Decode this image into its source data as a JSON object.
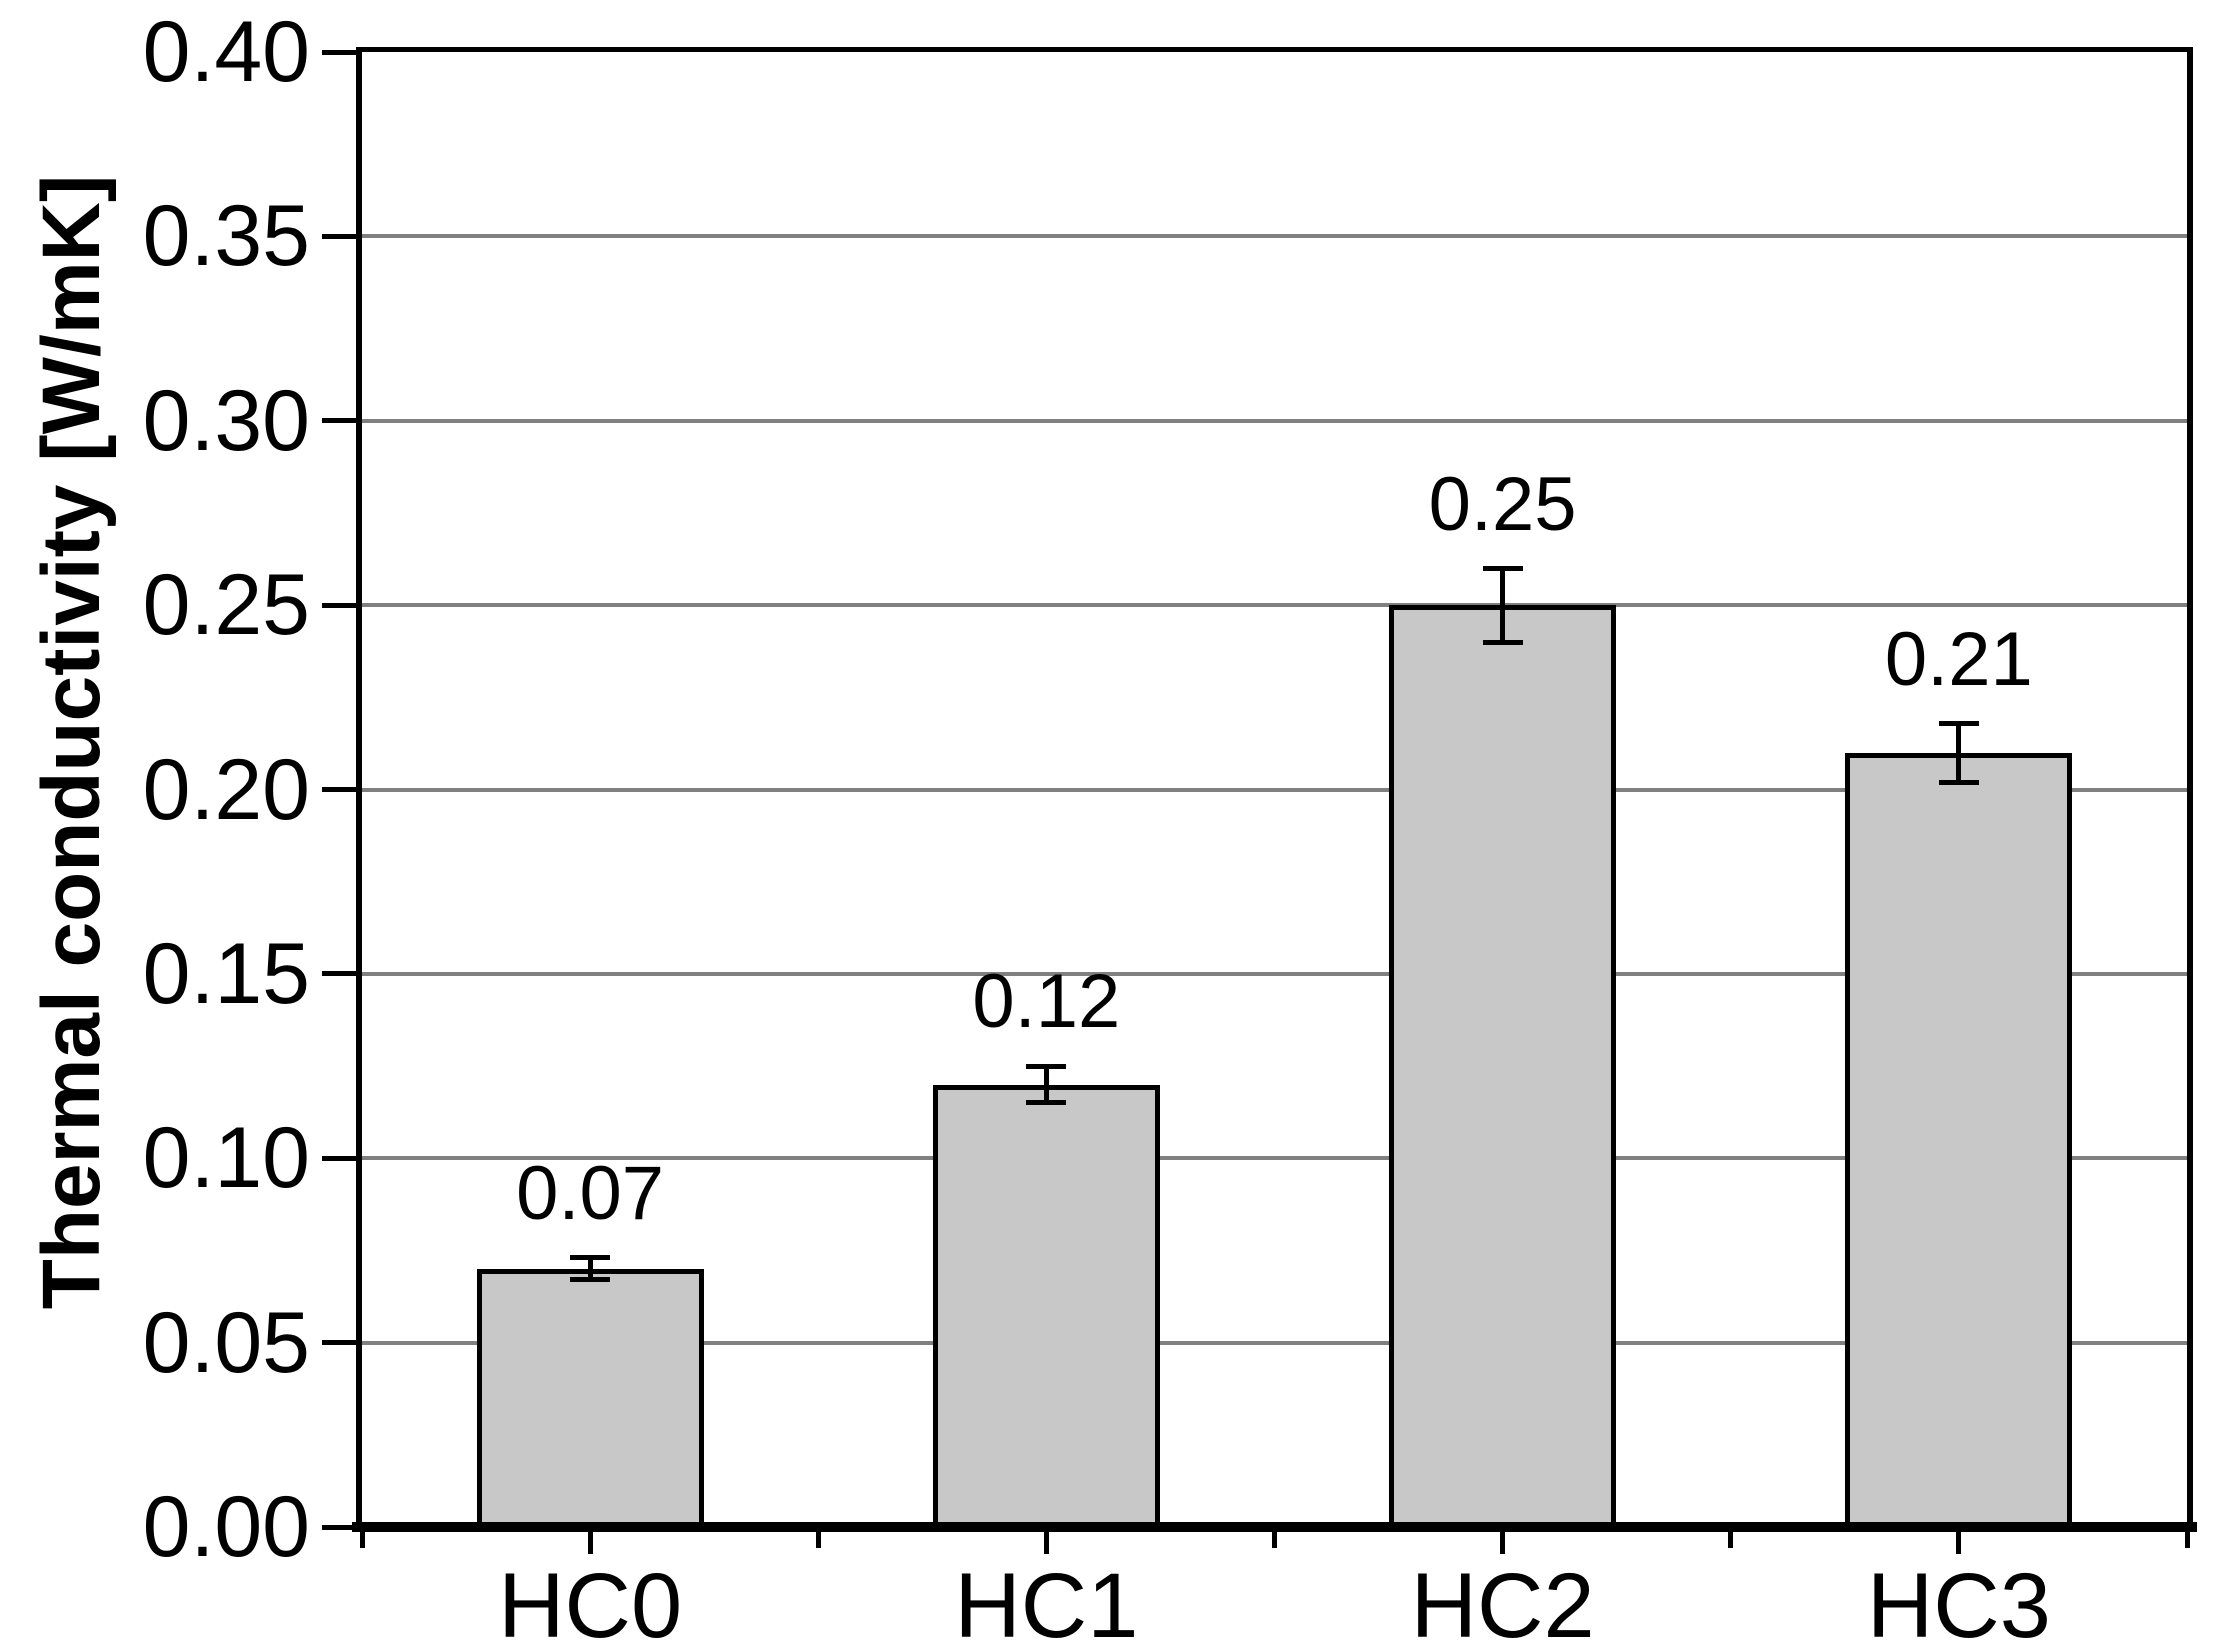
{
  "chart_data": {
    "type": "bar",
    "title": "",
    "categories": [
      "HC0",
      "HC1",
      "HC2",
      "HC3"
    ],
    "values": [
      0.07,
      0.12,
      0.25,
      0.21
    ],
    "errors": [
      0.003,
      0.005,
      0.01,
      0.008
    ],
    "value_labels": [
      "0.07",
      "0.12",
      "0.25",
      "0.21"
    ],
    "xlabel": "",
    "ylabel": "Thermal conductivity [W/mK]",
    "ylim": [
      0.0,
      0.4
    ],
    "ytick_step": 0.05,
    "ytick_labels": [
      "0.00",
      "0.05",
      "0.10",
      "0.15",
      "0.20",
      "0.25",
      "0.30",
      "0.35",
      "0.40"
    ],
    "grid": "horizontal-major",
    "legend": "none",
    "bar_fill_color": "#c8c8c8",
    "bar_border_color": "#000000",
    "gridline_color": "#808080",
    "axis_color": "#000000"
  }
}
